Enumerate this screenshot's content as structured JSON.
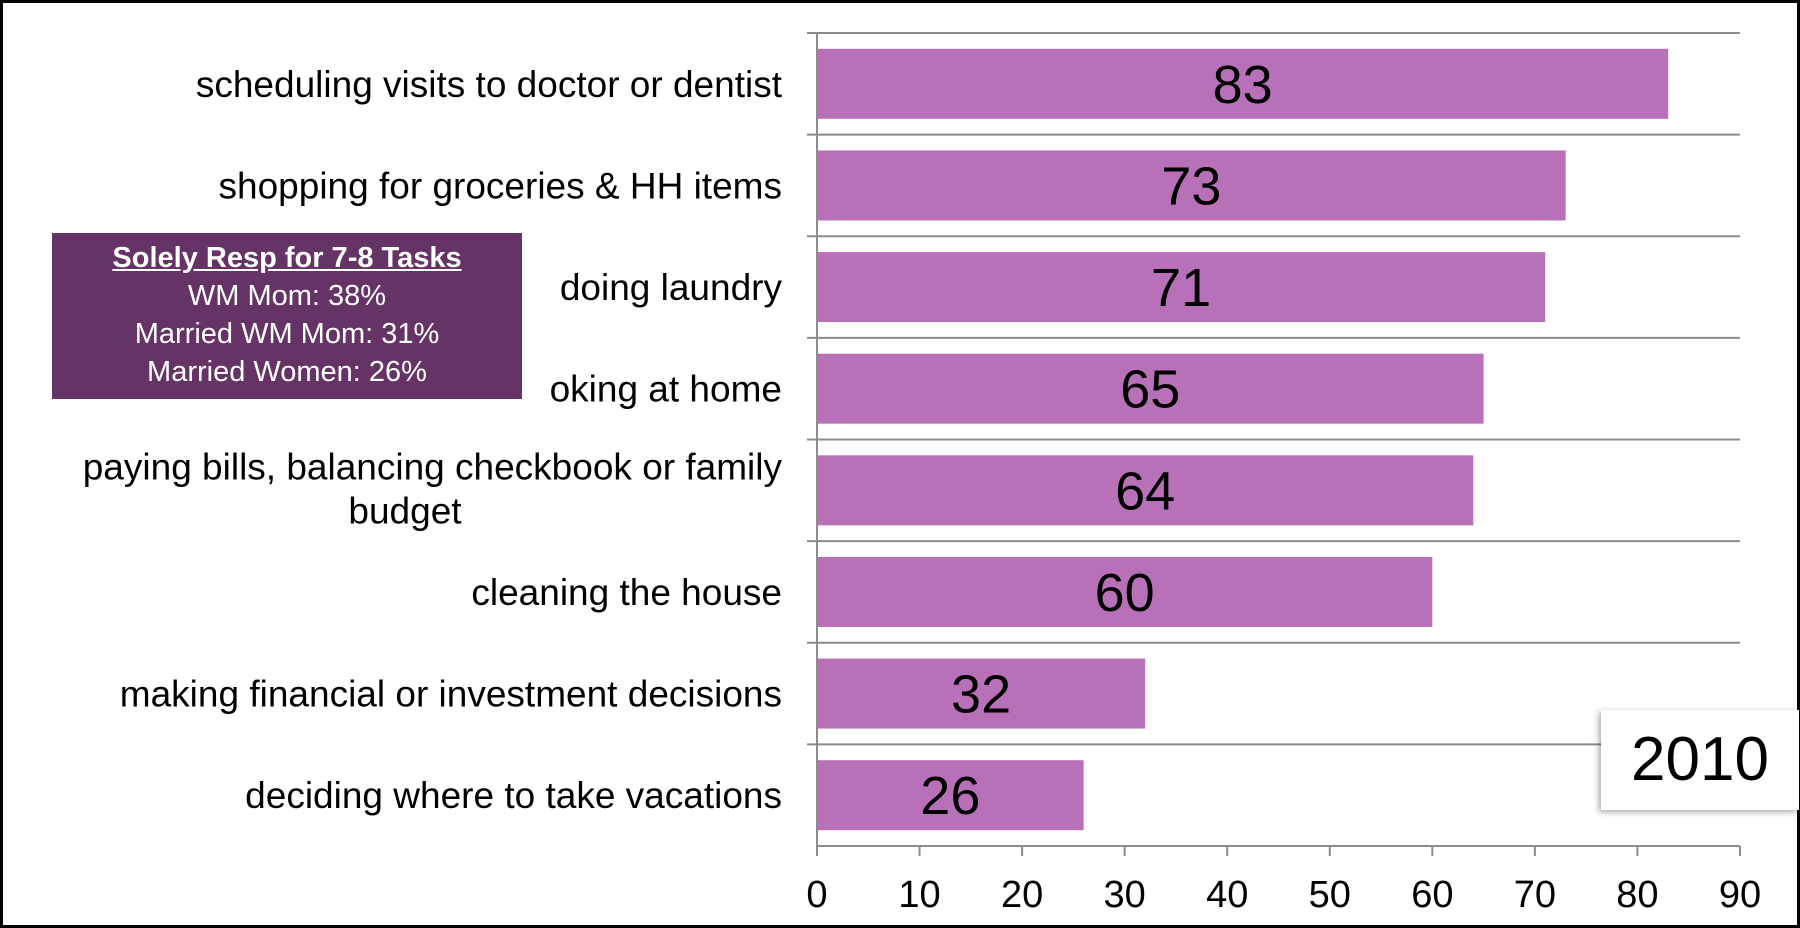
{
  "chart_data": {
    "type": "bar",
    "orientation": "horizontal",
    "categories": [
      "scheduling visits to doctor or dentist",
      "shopping for groceries & HH items",
      "doing laundry",
      "oking at home",
      "paying bills, balancing checkbook or family budget",
      "cleaning the house",
      "making financial or investment decisions",
      "deciding where to take vacations"
    ],
    "category_lines": [
      [
        "scheduling visits to doctor or dentist"
      ],
      [
        "shopping for groceries & HH items"
      ],
      [
        "doing laundry"
      ],
      [
        "oking at home"
      ],
      [
        "paying bills, balancing checkbook or family",
        "budget"
      ],
      [
        "cleaning the house"
      ],
      [
        "making financial or investment decisions"
      ],
      [
        "deciding where to take vacations"
      ]
    ],
    "values": [
      83,
      73,
      71,
      65,
      64,
      60,
      32,
      26
    ],
    "data_labels": [
      "83",
      "73",
      "71",
      "65",
      "64",
      "60",
      "32",
      "26"
    ],
    "xlim": [
      0,
      90
    ],
    "x_ticks": [
      0,
      10,
      20,
      30,
      40,
      50,
      60,
      70,
      80,
      90
    ],
    "x_tick_labels": [
      "0",
      "10",
      "20",
      "30",
      "40",
      "50",
      "60",
      "70",
      "80",
      "90"
    ],
    "grid": true,
    "bar_color": "#B871B8",
    "gridline_color": "#8C8C8C"
  },
  "annotation": {
    "title": "Solely Resp for 7-8 Tasks",
    "lines": [
      "WM Mom: 38%",
      "Married WM Mom: 31%",
      "Married Women: 26%"
    ],
    "background": "#663366",
    "text_color": "#FFFFFF"
  },
  "year_label": "2010"
}
